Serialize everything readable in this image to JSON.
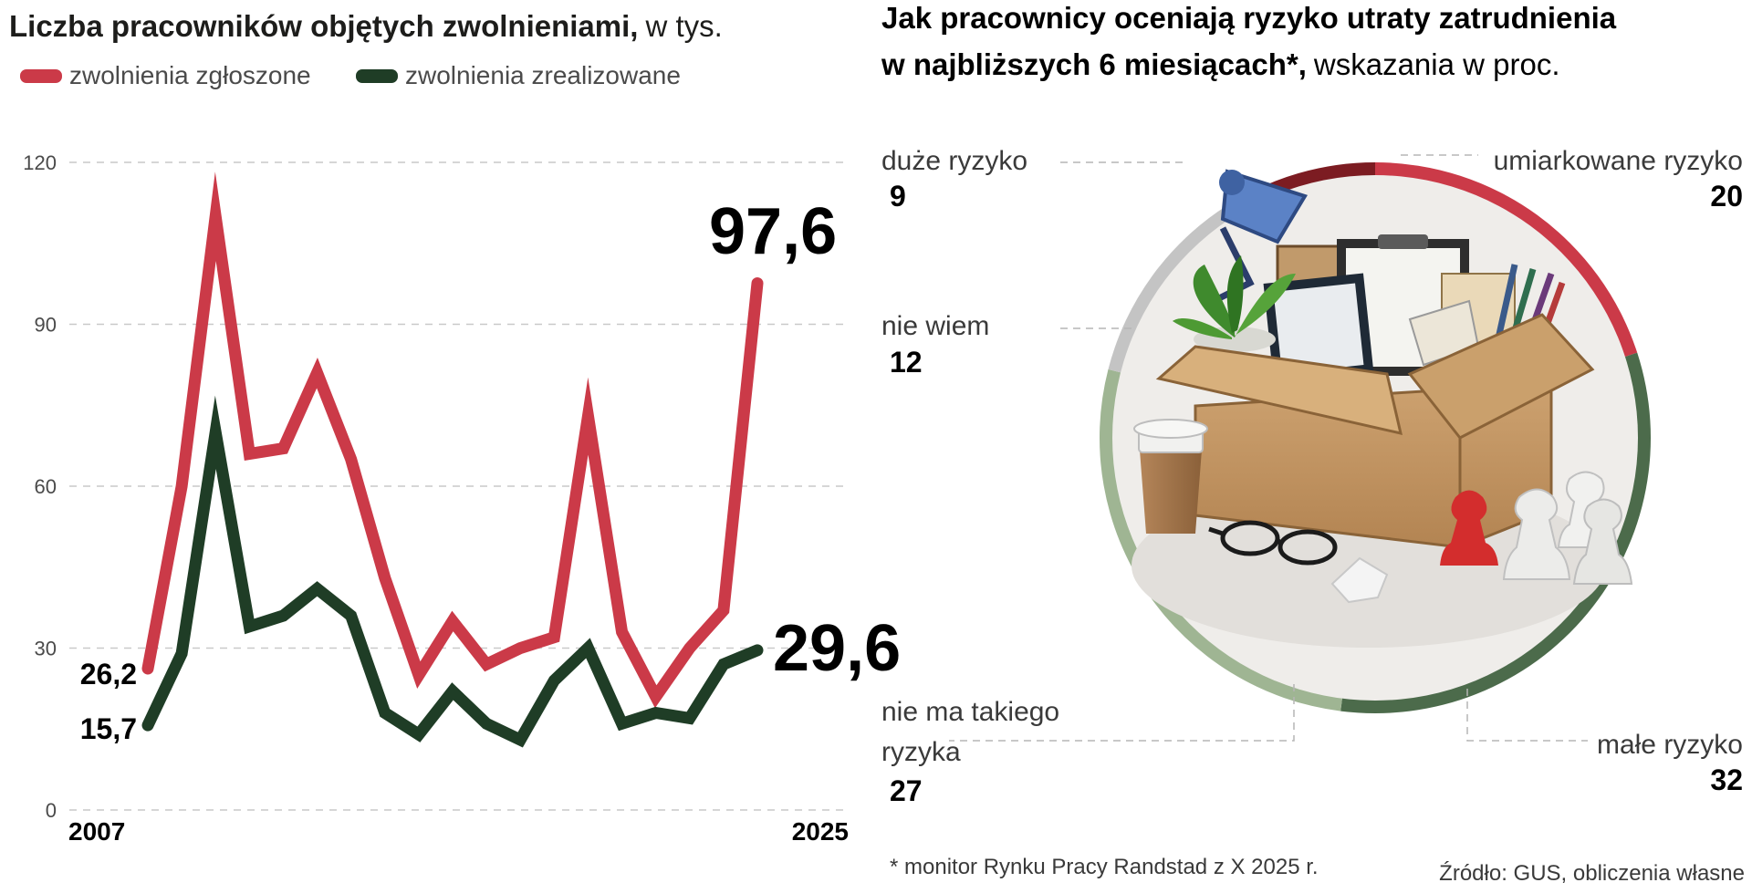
{
  "chart_data": [
    {
      "type": "line",
      "title": "Liczba pracowników objętych zwolnieniami,",
      "title_unit": "w tys.",
      "x": [
        2007,
        2008,
        2009,
        2010,
        2011,
        2012,
        2013,
        2014,
        2015,
        2016,
        2017,
        2018,
        2019,
        2020,
        2021,
        2022,
        2023,
        2024,
        2025
      ],
      "x_tick_labels": [
        "2007",
        "2025"
      ],
      "ylim": [
        0,
        120
      ],
      "yticks": [
        0,
        30,
        60,
        90,
        120
      ],
      "grid": true,
      "legend_position": "top-left",
      "series": [
        {
          "name": "zwolnienia zgłoszone",
          "color": "#cb3a48",
          "values": [
            26.2,
            60,
            110,
            66,
            67,
            81,
            65,
            43,
            25,
            35,
            27,
            30,
            32,
            73,
            33,
            21,
            30,
            37,
            97.6
          ],
          "first_label": "26,2",
          "last_label": "97,6"
        },
        {
          "name": "zwolnienia zrealizowane",
          "color": "#1f3d26",
          "values": [
            15.7,
            29,
            70,
            34,
            36,
            41,
            36,
            18,
            14,
            22,
            16,
            13,
            24,
            30,
            16,
            18,
            17,
            27,
            29.6
          ],
          "first_label": "15,7",
          "last_label": "29,6"
        }
      ]
    },
    {
      "type": "pie",
      "donut": true,
      "title_bold": "Jak pracownicy oceniają ryzyko utraty zatrudnienia w najbliższych 6 miesiącach*,",
      "title_line1": "Jak pracownicy oceniają ryzyko utraty zatrudnienia",
      "title_line2": "w najbliższych 6 miesiącach*,",
      "title_unit": "wskazania w proc.",
      "slices": [
        {
          "label": "umiarkowane ryzyko",
          "value": 20,
          "color": "#cb3a48"
        },
        {
          "label": "małe ryzyko",
          "value": 32,
          "color": "#4c6b4b"
        },
        {
          "label": "nie ma takiego ryzyka",
          "value": 27,
          "color": "#9fb593"
        },
        {
          "label": "nie wiem",
          "value": 12,
          "color": "#c4c4c4"
        },
        {
          "label": "duże ryzyko",
          "value": 9,
          "color": "#7c1c22"
        }
      ]
    }
  ],
  "footnote": "* monitor Rynku Pracy Randstad z X 2025 r.",
  "source": "Źródło: GUS, obliczenia własne",
  "icons": {
    "center_illustration": "office-box-illustration-icon"
  }
}
